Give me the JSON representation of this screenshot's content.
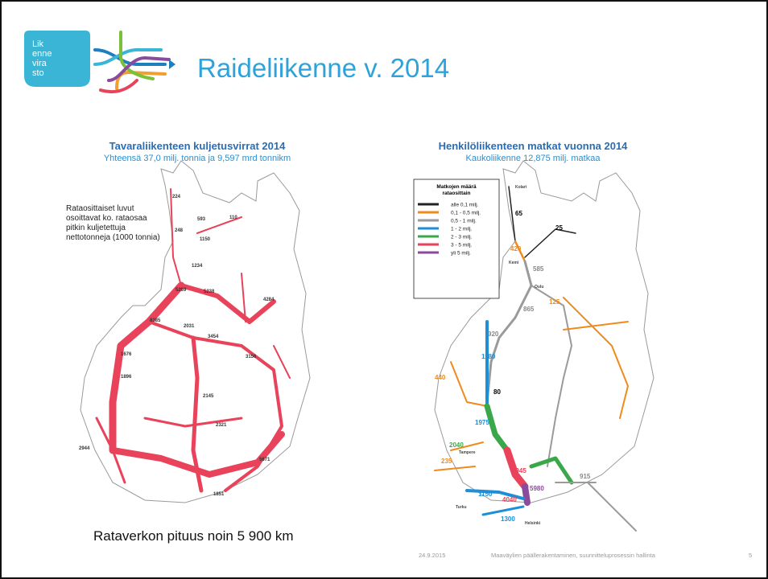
{
  "header": {
    "logo_text": [
      "Lik",
      "enne",
      "vira",
      "sto"
    ],
    "title": "Raideliikenne v. 2014"
  },
  "maps": [
    {
      "title": "Tavaraliikenteen kuljetusvirrat 2014",
      "subtitle": "Yhteensä 37,0 milj. tonnia ja 9,597 mrd tonnikm",
      "note": [
        "Rataosittaiset luvut",
        "osoittavat ko. rataosaa",
        "pitkin kuljetettuja",
        "nettotonneja (1000 tonnia)"
      ],
      "labels": [
        "224",
        "248",
        "593",
        "110",
        "1150",
        "1234",
        "5269",
        "5238",
        "8385",
        "2031",
        "3454",
        "4284",
        "1676",
        "1896",
        "2944",
        "5671",
        "1851",
        "2145",
        "3156",
        "2321"
      ]
    },
    {
      "title": "Henkilöliikenteen matkat vuonna 2014",
      "subtitle": "Kaukoliikenne 12,875 milj. matkaa",
      "legend": {
        "title": [
          "Matkojen määrä",
          "rataosittain"
        ],
        "items": [
          {
            "range": "alle  0,1 milj.",
            "color": "#222222"
          },
          {
            "range": "0,1 - 0,5 milj.",
            "color": "#f08a1c"
          },
          {
            "range": "0,5 - 1 milj.",
            "color": "#9a9a9a"
          },
          {
            "range": "1 - 2 milj.",
            "color": "#1e8fd6"
          },
          {
            "range": "2 - 3 milj.",
            "color": "#3aa84a"
          },
          {
            "range": "3 - 5 milj.",
            "color": "#e8435a"
          },
          {
            "range": "yli  5 milj.",
            "color": "#8a4b9c"
          }
        ]
      },
      "labels": [
        "Kolari",
        "65",
        "25",
        "420",
        "Kemi",
        "585",
        "Oulu",
        "125",
        "865",
        "920",
        "1180",
        "440",
        "1975",
        "2040",
        "235",
        "3945",
        "4040",
        "5980",
        "1150",
        "1300",
        "Helsinki",
        "Tampere",
        "Turku",
        "80",
        "915"
      ]
    }
  ],
  "body": "Rataverkon pituus noin 5 900 km",
  "footer": {
    "date": "24.9.2015",
    "text": "Maaväylien päällerakentaminen, suunnitteluprosessin hallinta",
    "page": "5"
  }
}
